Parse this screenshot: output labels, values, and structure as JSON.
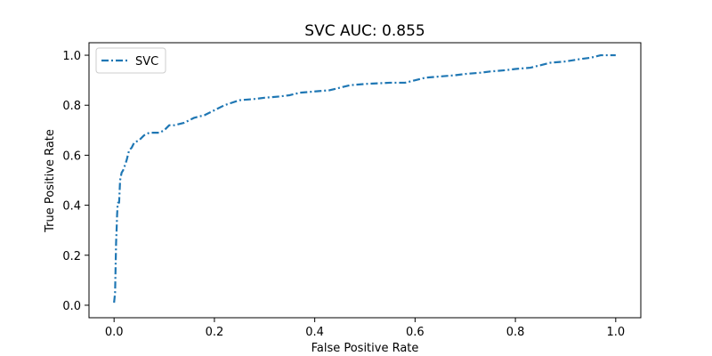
{
  "chart_data": {
    "type": "line",
    "title": "SVC AUC: 0.855",
    "xlabel": "False Positive Rate",
    "ylabel": "True Positive Rate",
    "xlim": [
      -0.05,
      1.05
    ],
    "ylim": [
      -0.05,
      1.05
    ],
    "xticks": [
      0.0,
      0.2,
      0.4,
      0.6,
      0.8,
      1.0
    ],
    "xtick_labels": [
      "0.0",
      "0.2",
      "0.4",
      "0.6",
      "0.8",
      "1.0"
    ],
    "yticks": [
      0.0,
      0.2,
      0.4,
      0.6,
      0.8,
      1.0
    ],
    "ytick_labels": [
      "0.0",
      "0.2",
      "0.4",
      "0.6",
      "0.8",
      "1.0"
    ],
    "grid": false,
    "legend_position": "upper-left",
    "series": [
      {
        "name": "SVC",
        "color": "#1f77b4",
        "linestyle": "dashdot",
        "x": [
          0.0,
          0.002,
          0.003,
          0.004,
          0.005,
          0.006,
          0.007,
          0.008,
          0.01,
          0.012,
          0.015,
          0.018,
          0.02,
          0.025,
          0.03,
          0.035,
          0.04,
          0.05,
          0.06,
          0.07,
          0.08,
          0.09,
          0.1,
          0.11,
          0.12,
          0.14,
          0.16,
          0.18,
          0.2,
          0.22,
          0.25,
          0.28,
          0.3,
          0.33,
          0.35,
          0.37,
          0.4,
          0.43,
          0.45,
          0.47,
          0.5,
          0.55,
          0.58,
          0.6,
          0.62,
          0.65,
          0.68,
          0.7,
          0.73,
          0.75,
          0.78,
          0.8,
          0.83,
          0.85,
          0.87,
          0.9,
          0.93,
          0.95,
          0.97,
          1.0
        ],
        "y": [
          0.01,
          0.05,
          0.15,
          0.25,
          0.3,
          0.36,
          0.4,
          0.41,
          0.41,
          0.5,
          0.53,
          0.54,
          0.55,
          0.58,
          0.62,
          0.63,
          0.65,
          0.66,
          0.68,
          0.69,
          0.69,
          0.69,
          0.7,
          0.72,
          0.72,
          0.73,
          0.75,
          0.76,
          0.78,
          0.8,
          0.82,
          0.825,
          0.83,
          0.835,
          0.84,
          0.85,
          0.855,
          0.86,
          0.87,
          0.88,
          0.885,
          0.89,
          0.89,
          0.9,
          0.91,
          0.915,
          0.92,
          0.925,
          0.93,
          0.935,
          0.94,
          0.945,
          0.95,
          0.96,
          0.97,
          0.975,
          0.985,
          0.99,
          1.0,
          1.0
        ]
      }
    ]
  }
}
